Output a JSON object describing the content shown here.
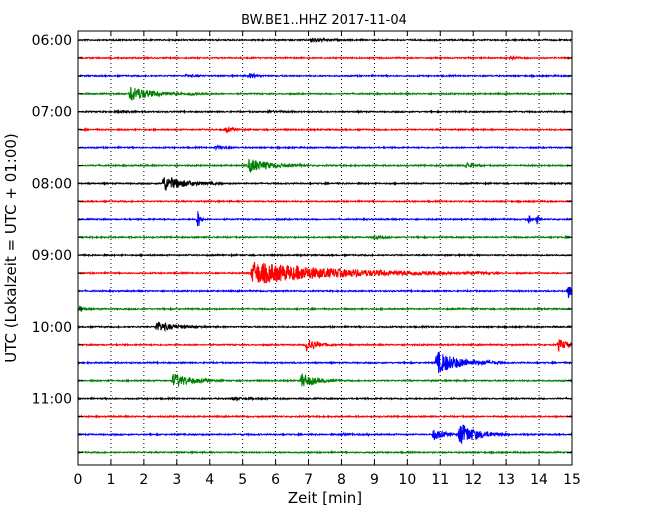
{
  "chart_data": {
    "type": "line",
    "title": "BW.BE1..HHZ 2017-11-04",
    "xlabel": "Zeit  [min]",
    "ylabel": "UTC (Lokalzeit = UTC + 01:00)",
    "xlim": [
      0,
      15
    ],
    "x_ticks": [
      "0",
      "1",
      "2",
      "3",
      "4",
      "5",
      "6",
      "7",
      "8",
      "9",
      "10",
      "11",
      "12",
      "13",
      "14",
      "15"
    ],
    "y_tick_labels": [
      "06:00",
      "07:00",
      "08:00",
      "09:00",
      "10:00",
      "11:00"
    ],
    "grid": "vertical-dotted",
    "trace_interval_min": 15,
    "colors": [
      "#000000",
      "#ff0000",
      "#0000ff",
      "#008000"
    ],
    "traces": [
      {
        "start": "06:00",
        "color": "#000000",
        "events": [
          {
            "t": 7.1,
            "amp": 0.35,
            "dur": 0.3
          }
        ]
      },
      {
        "start": "06:15",
        "color": "#ff0000",
        "events": [
          {
            "t": 13.1,
            "amp": 0.2,
            "dur": 0.2
          }
        ]
      },
      {
        "start": "06:30",
        "color": "#0000ff",
        "events": [
          {
            "t": 3.3,
            "amp": 0.2,
            "dur": 0.2
          },
          {
            "t": 5.2,
            "amp": 0.35,
            "dur": 0.2
          }
        ]
      },
      {
        "start": "06:45",
        "color": "#008000",
        "events": [
          {
            "t": 1.6,
            "amp": 1.1,
            "dur": 0.6
          },
          {
            "t": 3.4,
            "amp": 0.2,
            "dur": 0.3
          }
        ]
      },
      {
        "start": "07:00",
        "color": "#000000",
        "events": [
          {
            "t": 1.2,
            "amp": 0.2,
            "dur": 0.3
          },
          {
            "t": 5.8,
            "amp": 0.15,
            "dur": 0.3
          }
        ]
      },
      {
        "start": "07:15",
        "color": "#ff0000",
        "events": [
          {
            "t": 4.5,
            "amp": 0.35,
            "dur": 0.2
          }
        ]
      },
      {
        "start": "07:30",
        "color": "#0000ff",
        "events": [
          {
            "t": 4.2,
            "amp": 0.3,
            "dur": 0.2
          }
        ]
      },
      {
        "start": "07:45",
        "color": "#008000",
        "events": [
          {
            "t": 5.2,
            "amp": 1.0,
            "dur": 0.6
          },
          {
            "t": 11.8,
            "amp": 0.4,
            "dur": 0.2
          }
        ]
      },
      {
        "start": "08:00",
        "color": "#000000",
        "events": [
          {
            "t": 2.6,
            "amp": 1.1,
            "dur": 0.6
          }
        ]
      },
      {
        "start": "08:15",
        "color": "#ff0000",
        "events": []
      },
      {
        "start": "08:30",
        "color": "#0000ff",
        "events": [
          {
            "t": 3.65,
            "amp": 1.6,
            "dur": 0.05
          },
          {
            "t": 13.7,
            "amp": 0.6,
            "dur": 0.05
          },
          {
            "t": 13.95,
            "amp": 0.7,
            "dur": 0.05
          }
        ]
      },
      {
        "start": "08:45",
        "color": "#008000",
        "events": [
          {
            "t": 9.0,
            "amp": 0.25,
            "dur": 0.2
          }
        ]
      },
      {
        "start": "09:00",
        "color": "#000000",
        "events": []
      },
      {
        "start": "09:15",
        "color": "#ff0000",
        "events": [
          {
            "t": 5.3,
            "amp": 1.6,
            "dur": 2.5
          }
        ]
      },
      {
        "start": "09:30",
        "color": "#0000ff",
        "events": [
          {
            "t": 14.9,
            "amp": 1.0,
            "dur": 0.15
          }
        ]
      },
      {
        "start": "09:45",
        "color": "#008000",
        "events": [
          {
            "t": 0.05,
            "amp": 0.5,
            "dur": 0.1
          }
        ]
      },
      {
        "start": "10:00",
        "color": "#000000",
        "events": [
          {
            "t": 2.4,
            "amp": 0.7,
            "dur": 0.5
          }
        ]
      },
      {
        "start": "10:15",
        "color": "#ff0000",
        "events": [
          {
            "t": 6.95,
            "amp": 1.0,
            "dur": 0.3
          },
          {
            "t": 14.6,
            "amp": 0.8,
            "dur": 0.3
          }
        ]
      },
      {
        "start": "10:30",
        "color": "#0000ff",
        "events": [
          {
            "t": 10.9,
            "amp": 1.6,
            "dur": 0.7
          }
        ]
      },
      {
        "start": "10:45",
        "color": "#008000",
        "events": [
          {
            "t": 2.9,
            "amp": 1.0,
            "dur": 0.5
          },
          {
            "t": 6.8,
            "amp": 1.0,
            "dur": 0.4
          }
        ]
      },
      {
        "start": "11:00",
        "color": "#000000",
        "events": [
          {
            "t": 4.7,
            "amp": 0.2,
            "dur": 0.3
          }
        ]
      },
      {
        "start": "11:15",
        "color": "#ff0000",
        "events": []
      },
      {
        "start": "11:30",
        "color": "#0000ff",
        "events": [
          {
            "t": 8.0,
            "amp": 0.2,
            "dur": 0.3
          },
          {
            "t": 10.8,
            "amp": 0.8,
            "dur": 0.3
          },
          {
            "t": 11.6,
            "amp": 1.6,
            "dur": 0.5
          }
        ]
      },
      {
        "start": "11:45",
        "color": "#008000",
        "events": []
      }
    ]
  }
}
